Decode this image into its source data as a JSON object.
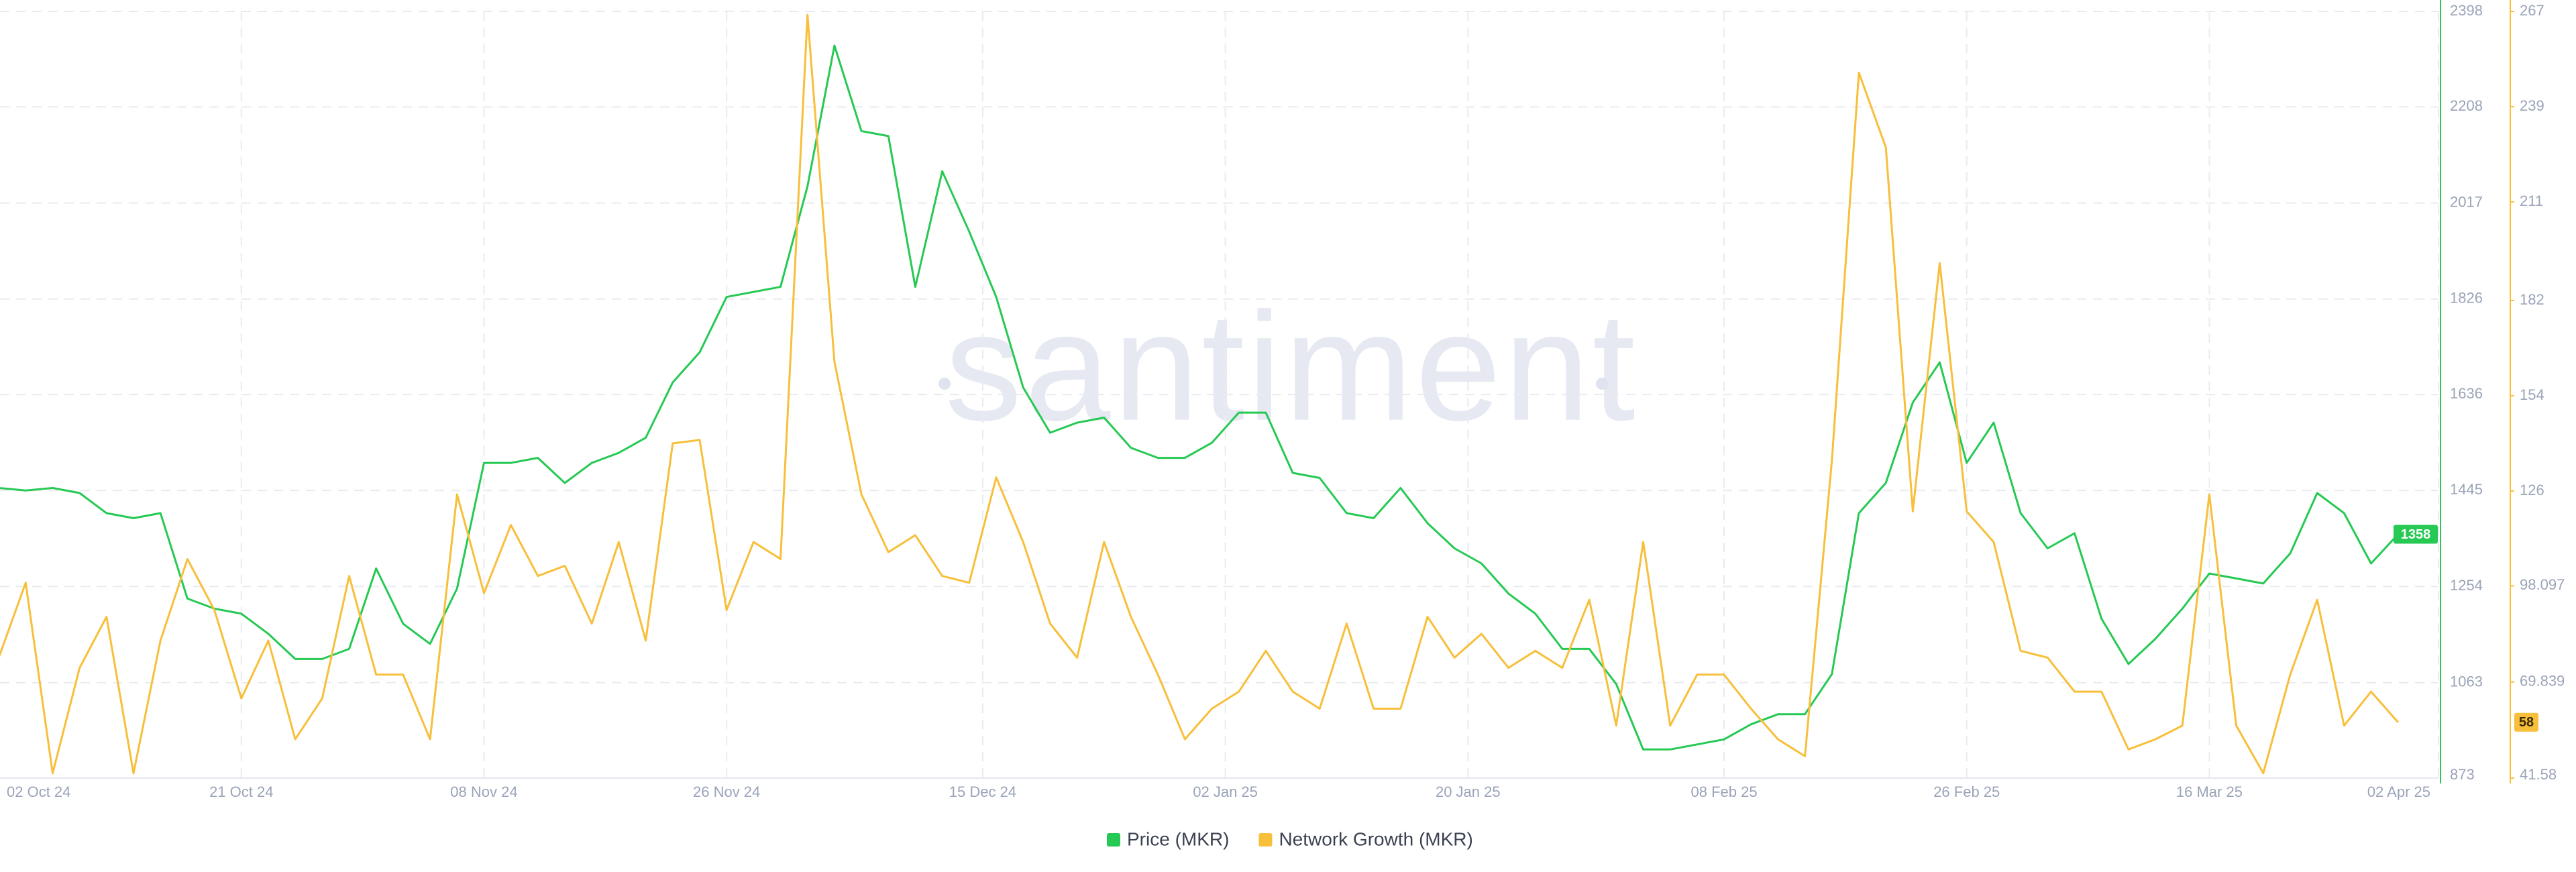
{
  "chart_data": {
    "type": "line",
    "watermark": "santiment",
    "x": [
      "2024-10-03",
      "2024-10-05",
      "2024-10-07",
      "2024-10-09",
      "2024-10-11",
      "2024-10-13",
      "2024-10-15",
      "2024-10-17",
      "2024-10-19",
      "2024-10-21",
      "2024-10-23",
      "2024-10-25",
      "2024-10-27",
      "2024-10-29",
      "2024-10-31",
      "2024-11-02",
      "2024-11-04",
      "2024-11-06",
      "2024-11-08",
      "2024-11-10",
      "2024-11-12",
      "2024-11-14",
      "2024-11-16",
      "2024-11-18",
      "2024-11-20",
      "2024-11-22",
      "2024-11-24",
      "2024-11-26",
      "2024-11-28",
      "2024-11-30",
      "2024-12-02",
      "2024-12-04",
      "2024-12-06",
      "2024-12-08",
      "2024-12-10",
      "2024-12-12",
      "2024-12-14",
      "2024-12-16",
      "2024-12-18",
      "2024-12-20",
      "2024-12-22",
      "2024-12-24",
      "2024-12-26",
      "2024-12-28",
      "2024-12-30",
      "2025-01-01",
      "2025-01-03",
      "2025-01-05",
      "2025-01-07",
      "2025-01-09",
      "2025-01-11",
      "2025-01-13",
      "2025-01-15",
      "2025-01-17",
      "2025-01-19",
      "2025-01-21",
      "2025-01-23",
      "2025-01-25",
      "2025-01-27",
      "2025-01-29",
      "2025-01-31",
      "2025-02-02",
      "2025-02-04",
      "2025-02-06",
      "2025-02-08",
      "2025-02-10",
      "2025-02-12",
      "2025-02-14",
      "2025-02-16",
      "2025-02-18",
      "2025-02-20",
      "2025-02-22",
      "2025-02-24",
      "2025-02-26",
      "2025-02-28",
      "2025-03-02",
      "2025-03-04",
      "2025-03-06",
      "2025-03-08",
      "2025-03-10",
      "2025-03-12",
      "2025-03-14",
      "2025-03-16",
      "2025-03-18",
      "2025-03-20",
      "2025-03-22",
      "2025-03-24",
      "2025-03-26",
      "2025-03-28",
      "2025-03-30"
    ],
    "xticks": [
      {
        "value": "2024-10-02",
        "label": "02 Oct 24"
      },
      {
        "value": "2024-10-21",
        "label": "21 Oct 24"
      },
      {
        "value": "2024-11-08",
        "label": "08 Nov 24"
      },
      {
        "value": "2024-11-26",
        "label": "26 Nov 24"
      },
      {
        "value": "2024-12-15",
        "label": "15 Dec 24"
      },
      {
        "value": "2025-01-02",
        "label": "02 Jan 25"
      },
      {
        "value": "2025-01-20",
        "label": "20 Jan 25"
      },
      {
        "value": "2025-02-08",
        "label": "08 Feb 25"
      },
      {
        "value": "2025-02-26",
        "label": "26 Feb 25"
      },
      {
        "value": "2025-03-16",
        "label": "16 Mar 25"
      },
      {
        "value": "2025-04-02",
        "label": "02 Apr 25"
      }
    ],
    "ylim": [
      873,
      2398
    ],
    "yticks": [
      873,
      1063,
      1254,
      1445,
      1636,
      1826,
      2017,
      2208,
      2398
    ],
    "y2lim": [
      41.58,
      267
    ],
    "y2ticks": [
      41.58,
      69.839,
      98.097,
      126,
      154,
      182,
      211,
      239,
      267
    ],
    "grid": true,
    "series": [
      {
        "name": "Price (MKR)",
        "color": "#26c953",
        "axis": "y",
        "current_value": 1358,
        "values": [
          1450,
          1445,
          1450,
          1440,
          1400,
          1390,
          1400,
          1230,
          1210,
          1200,
          1160,
          1110,
          1110,
          1130,
          1290,
          1180,
          1140,
          1250,
          1500,
          1500,
          1510,
          1460,
          1500,
          1520,
          1550,
          1660,
          1720,
          1830,
          1840,
          1850,
          2050,
          2330,
          2160,
          2150,
          1850,
          2080,
          1960,
          1830,
          1650,
          1560,
          1580,
          1590,
          1530,
          1510,
          1510,
          1540,
          1600,
          1600,
          1480,
          1470,
          1400,
          1390,
          1450,
          1380,
          1330,
          1300,
          1240,
          1200,
          1130,
          1130,
          1060,
          930,
          930,
          940,
          950,
          980,
          1000,
          1000,
          1080,
          1400,
          1460,
          1620,
          1700,
          1500,
          1580,
          1400,
          1330,
          1360,
          1190,
          1100,
          1150,
          1210,
          1280,
          1270,
          1260,
          1320,
          1440,
          1400,
          1300,
          1358
        ]
      },
      {
        "name": "Network Growth (MKR)",
        "color": "#f7bf3a",
        "axis": "y2",
        "current_value": 58,
        "values": [
          77,
          99,
          43,
          74,
          89,
          43,
          82,
          106,
          91,
          65,
          82,
          53,
          65,
          101,
          72,
          72,
          53,
          125,
          96,
          116,
          101,
          104,
          87,
          111,
          82,
          140,
          141,
          91,
          111,
          106,
          266,
          164,
          125,
          108,
          113,
          101,
          99,
          130,
          111,
          87,
          77,
          111,
          89,
          72,
          53,
          62,
          67,
          79,
          67,
          62,
          87,
          62,
          62,
          89,
          77,
          84,
          74,
          79,
          74,
          94,
          57,
          111,
          57,
          72,
          72,
          62,
          53,
          48,
          135,
          249,
          227,
          120,
          193,
          120,
          111,
          79,
          77,
          67,
          67,
          50,
          53,
          57,
          125,
          57,
          43,
          72,
          94,
          57,
          67,
          58
        ]
      }
    ]
  }
}
